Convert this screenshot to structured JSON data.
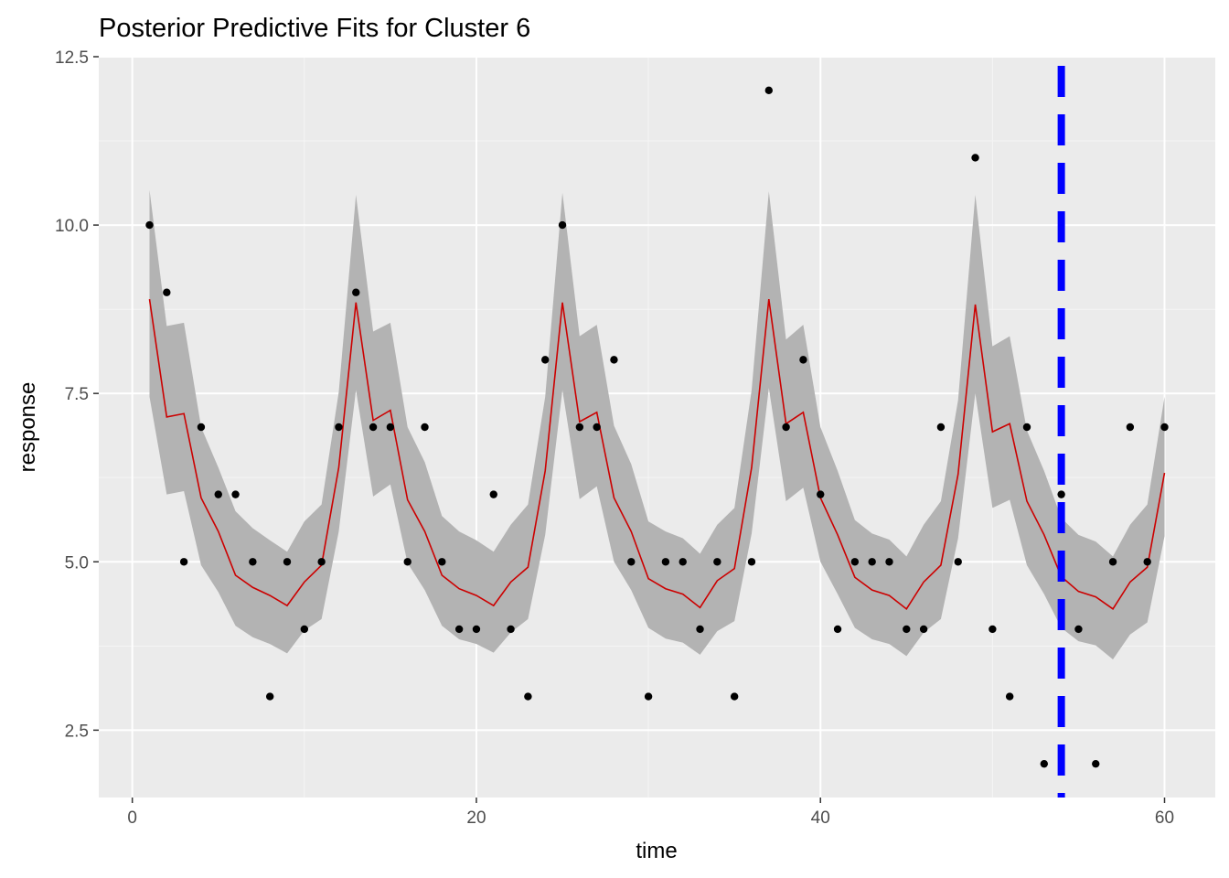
{
  "colors": {
    "panel": "#ebebeb",
    "grid_major": "#ffffff",
    "grid_minor": "#f5f5f5",
    "ribbon": "#b3b3b3",
    "fit_line": "#cc0000",
    "points": "#000000",
    "vline": "#0000ff",
    "tick": "#333333"
  },
  "chart_data": {
    "type": "line",
    "title": "Posterior Predictive Fits for Cluster 6",
    "xlabel": "time",
    "ylabel": "response",
    "xlim": [
      -1.95,
      62.95
    ],
    "ylim": [
      1.5,
      12.5
    ],
    "x_ticks": [
      0,
      20,
      40,
      60
    ],
    "x_tick_labels": [
      "0",
      "20",
      "40",
      "60"
    ],
    "y_ticks": [
      2.5,
      5.0,
      7.5,
      10.0,
      12.5
    ],
    "y_tick_labels": [
      "2.5",
      "5.0",
      "7.5",
      "10.0",
      "12.5"
    ],
    "grid": true,
    "legend": "none",
    "vline": {
      "x": 54,
      "style": "dashed"
    },
    "points": {
      "x": [
        1,
        2,
        3,
        4,
        5,
        6,
        7,
        8,
        9,
        10,
        11,
        12,
        13,
        14,
        15,
        16,
        17,
        18,
        19,
        20,
        21,
        22,
        23,
        24,
        25,
        26,
        27,
        28,
        29,
        30,
        31,
        32,
        33,
        34,
        35,
        36,
        37,
        38,
        39,
        40,
        41,
        42,
        43,
        44,
        45,
        46,
        47,
        48,
        49,
        50,
        51,
        52,
        53,
        54,
        55,
        56,
        57,
        58,
        59,
        60
      ],
      "y": [
        10,
        9,
        5,
        7,
        6,
        6,
        5,
        3,
        5,
        4,
        5,
        7,
        9,
        7,
        7,
        5,
        7,
        5,
        4,
        4,
        6,
        4,
        3,
        8,
        10,
        7,
        7,
        8,
        5,
        3,
        5,
        5,
        4,
        5,
        3,
        5,
        12,
        7,
        8,
        6,
        4,
        5,
        5,
        5,
        4,
        4,
        7,
        5,
        11,
        4,
        3,
        7,
        2,
        6,
        4,
        2,
        5,
        7,
        5,
        7
      ]
    },
    "fit": {
      "x": [
        1,
        2,
        3,
        4,
        5,
        6,
        7,
        8,
        9,
        10,
        11,
        12,
        13,
        14,
        15,
        16,
        17,
        18,
        19,
        20,
        21,
        22,
        23,
        24,
        25,
        26,
        27,
        28,
        29,
        30,
        31,
        32,
        33,
        34,
        35,
        36,
        37,
        38,
        39,
        40,
        41,
        42,
        43,
        44,
        45,
        46,
        47,
        48,
        49,
        50,
        51,
        52,
        53,
        54,
        55,
        56,
        57,
        58,
        59,
        60
      ],
      "mean": [
        8.9,
        7.15,
        7.2,
        5.95,
        5.45,
        4.8,
        4.62,
        4.5,
        4.35,
        4.7,
        4.95,
        6.4,
        8.85,
        7.1,
        7.25,
        5.92,
        5.45,
        4.8,
        4.6,
        4.5,
        4.35,
        4.7,
        4.92,
        6.35,
        8.85,
        7.08,
        7.22,
        5.95,
        5.45,
        4.75,
        4.6,
        4.52,
        4.32,
        4.72,
        4.9,
        6.4,
        8.9,
        7.05,
        7.22,
        5.95,
        5.4,
        4.77,
        4.58,
        4.5,
        4.3,
        4.7,
        4.95,
        6.3,
        8.82,
        6.93,
        7.05,
        5.9,
        5.4,
        4.78,
        4.56,
        4.48,
        4.3,
        4.7,
        4.92,
        6.32
      ],
      "lower": [
        7.45,
        6.0,
        6.05,
        4.95,
        4.55,
        4.05,
        3.88,
        3.78,
        3.64,
        3.98,
        4.15,
        5.45,
        7.55,
        5.97,
        6.15,
        4.98,
        4.58,
        4.05,
        3.85,
        3.78,
        3.65,
        3.95,
        4.15,
        5.4,
        7.55,
        5.93,
        6.12,
        5.0,
        4.58,
        4.02,
        3.86,
        3.8,
        3.62,
        3.97,
        4.12,
        5.42,
        7.58,
        5.9,
        6.1,
        5.0,
        4.52,
        4.02,
        3.85,
        3.78,
        3.6,
        3.95,
        4.15,
        5.35,
        7.5,
        5.8,
        5.92,
        4.95,
        4.52,
        4.02,
        3.82,
        3.76,
        3.55,
        3.92,
        4.1,
        5.38
      ],
      "upper": [
        10.52,
        8.5,
        8.55,
        7.0,
        6.4,
        5.75,
        5.5,
        5.32,
        5.15,
        5.6,
        5.85,
        7.52,
        10.45,
        8.42,
        8.55,
        7.0,
        6.48,
        5.68,
        5.45,
        5.32,
        5.15,
        5.55,
        5.85,
        7.45,
        10.48,
        8.35,
        8.52,
        7.02,
        6.45,
        5.6,
        5.45,
        5.35,
        5.12,
        5.55,
        5.8,
        7.55,
        10.5,
        8.3,
        8.52,
        7.0,
        6.35,
        5.62,
        5.42,
        5.33,
        5.08,
        5.55,
        5.9,
        7.4,
        10.45,
        8.2,
        8.35,
        6.95,
        6.35,
        5.65,
        5.4,
        5.3,
        5.08,
        5.55,
        5.85,
        7.45
      ]
    }
  }
}
